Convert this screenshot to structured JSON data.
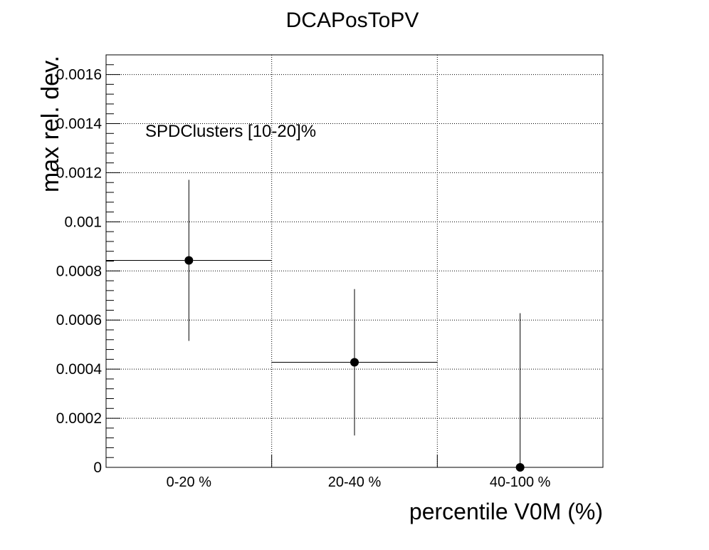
{
  "chart_data": {
    "type": "scatter",
    "title": "DCAPosToPV",
    "xlabel": "percentile V0M (%)",
    "ylabel": "max rel. dev.",
    "annotation": "SPDClusters [10-20]%",
    "categories": [
      "0-20 %",
      "20-40 %",
      "40-100 %"
    ],
    "ylim": [
      0,
      0.00168
    ],
    "yticks": [
      {
        "value": 0,
        "label": "0"
      },
      {
        "value": 0.0002,
        "label": "0.0002"
      },
      {
        "value": 0.0004,
        "label": "0.0004"
      },
      {
        "value": 0.0006,
        "label": "0.0006"
      },
      {
        "value": 0.0008,
        "label": "0.0008"
      },
      {
        "value": 0.001,
        "label": "0.001"
      },
      {
        "value": 0.0012,
        "label": "0.0012"
      },
      {
        "value": 0.0014,
        "label": "0.0014"
      },
      {
        "value": 0.0016,
        "label": "0.0016"
      }
    ],
    "grid": true,
    "series": [
      {
        "values": [
          0.000843,
          0.000428,
          0.0
        ],
        "errors": [
          0.000328,
          0.000298,
          0.000628
        ]
      }
    ]
  }
}
